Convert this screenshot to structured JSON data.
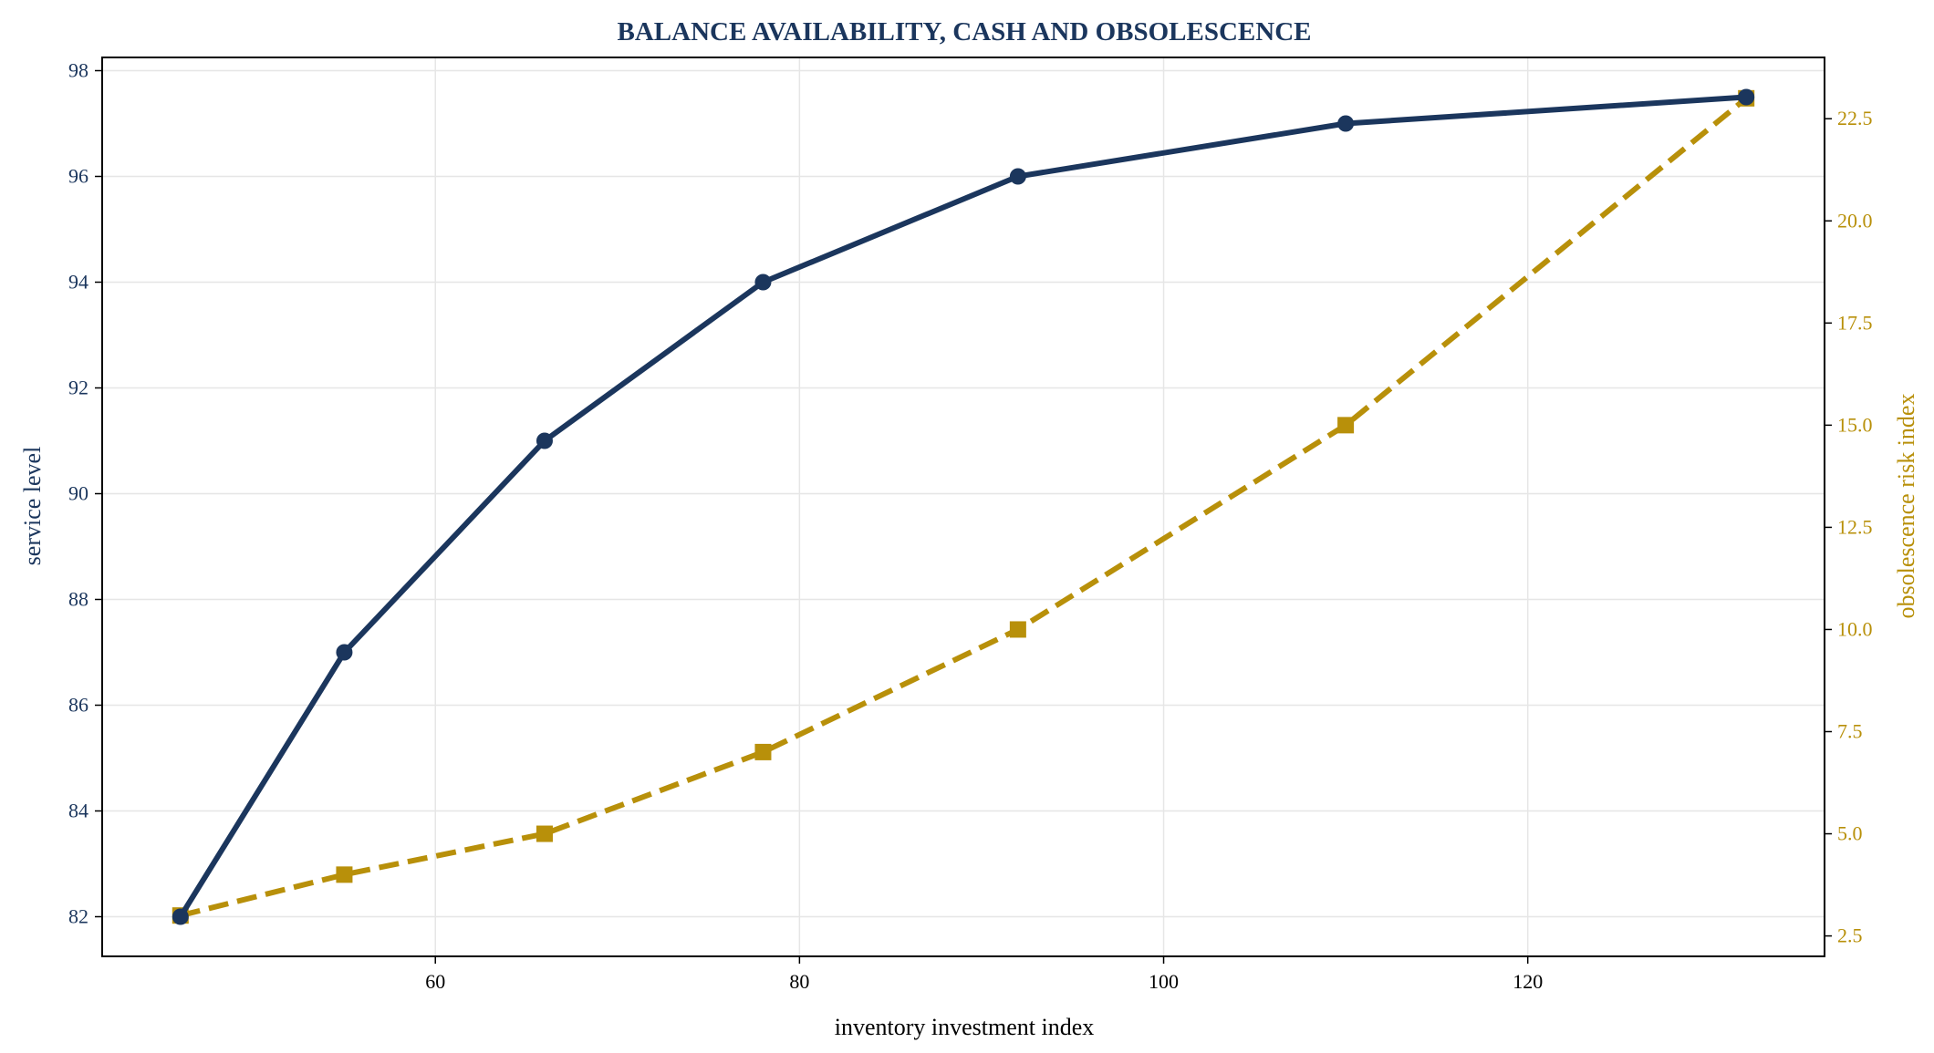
{
  "chart_data": {
    "type": "line",
    "title": "BALANCE AVAILABILITY, CASH AND OBSOLESCENCE",
    "xlabel": "inventory investment index",
    "ylabel": "service level",
    "y2label": "obsolescence risk index",
    "x": [
      46,
      55,
      66,
      78,
      92,
      110,
      132
    ],
    "xlim": [
      41.7,
      136.3
    ],
    "ylim": [
      81.25,
      98.25
    ],
    "y2lim": [
      2.0,
      24.0
    ],
    "xticks": [
      "60",
      "80",
      "100",
      "120"
    ],
    "yticks": [
      "82",
      "84",
      "86",
      "88",
      "90",
      "92",
      "94",
      "96",
      "98"
    ],
    "y2ticks": [
      "2.5",
      "5.0",
      "7.5",
      "10.0",
      "12.5",
      "15.0",
      "17.5",
      "20.0",
      "22.5"
    ],
    "grid": true,
    "series": [
      {
        "axis": "left",
        "values": [
          82,
          87,
          91,
          94,
          96,
          97,
          97.5
        ],
        "color": "#1b365d",
        "marker": "circle",
        "style": "solid"
      },
      {
        "axis": "right",
        "values": [
          3,
          4,
          5,
          7,
          10,
          15,
          23
        ],
        "color": "#b8900a",
        "marker": "square",
        "style": "dashed"
      }
    ]
  }
}
